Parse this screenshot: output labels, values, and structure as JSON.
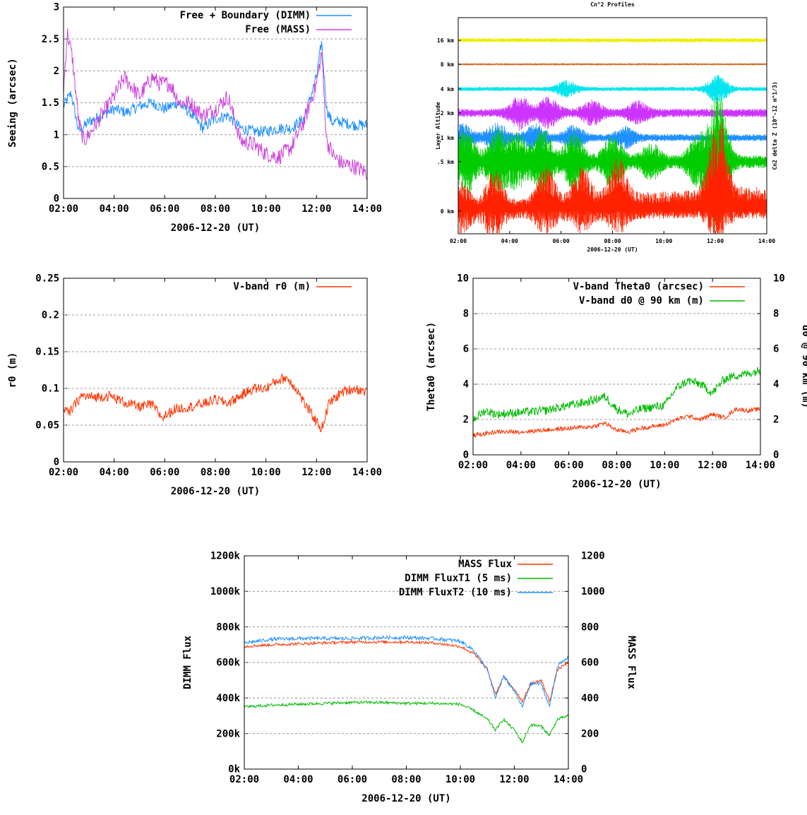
{
  "chart_data": [
    {
      "id": "seeing",
      "type": "line",
      "ylabel": "Seeing (arcsec)",
      "xlabel": "2006-12-20 (UT)",
      "x_ticks": [
        "02:00",
        "04:00",
        "06:00",
        "08:00",
        "10:00",
        "12:00",
        "14:00"
      ],
      "x_range_hours": [
        2,
        14
      ],
      "y_range": [
        0,
        3
      ],
      "y_ticks": [
        "0",
        "0.5",
        "1",
        "1.5",
        "2",
        "2.5",
        "3"
      ],
      "grid": "horizontal dashed",
      "legend_position": "top-right",
      "series": [
        {
          "name": "Free + Boundary (DIMM)",
          "color": "#1e90ff",
          "x": [
            2.0,
            2.3,
            2.6,
            3.0,
            3.5,
            4.0,
            4.5,
            5.0,
            5.5,
            6.0,
            6.5,
            7.0,
            7.5,
            8.0,
            8.5,
            9.0,
            9.5,
            10.0,
            10.5,
            11.0,
            11.5,
            12.0,
            12.2,
            12.4,
            12.6,
            13.0,
            13.5,
            14.0
          ],
          "values": [
            1.45,
            1.65,
            1.05,
            1.2,
            1.3,
            1.4,
            1.35,
            1.45,
            1.5,
            1.4,
            1.5,
            1.35,
            1.1,
            1.25,
            1.3,
            1.1,
            1.05,
            1.05,
            1.1,
            1.1,
            1.25,
            1.9,
            2.45,
            1.4,
            1.2,
            1.2,
            1.15,
            1.15
          ],
          "noise": 0.09
        },
        {
          "name": "Free (MASS)",
          "color": "#cc44dd",
          "x": [
            2.0,
            2.15,
            2.35,
            2.6,
            2.8,
            3.0,
            3.5,
            4.0,
            4.4,
            4.8,
            5.0,
            5.5,
            5.8,
            6.2,
            6.6,
            7.0,
            7.5,
            8.0,
            8.5,
            9.0,
            9.5,
            10.0,
            10.5,
            11.0,
            11.5,
            12.0,
            12.2,
            12.4,
            12.7,
            13.0,
            13.5,
            14.0
          ],
          "values": [
            1.7,
            2.6,
            2.2,
            1.2,
            0.9,
            1.0,
            1.3,
            1.6,
            1.9,
            1.7,
            1.6,
            1.9,
            1.8,
            1.8,
            1.5,
            1.5,
            1.3,
            1.4,
            1.6,
            0.9,
            0.85,
            0.7,
            0.65,
            0.8,
            1.2,
            1.8,
            2.3,
            0.9,
            0.65,
            0.55,
            0.5,
            0.4
          ],
          "noise": 0.13
        }
      ]
    },
    {
      "id": "cn2",
      "type": "line",
      "title": "Cn^2 Profiles",
      "ylabel": "Layer Altitude",
      "y2label": "Cn2 delta Z (10^-12 m^1/3)",
      "xlabel": "2006-12-20 (UT)",
      "x_ticks": [
        "02:00",
        "04:00",
        "06:00",
        "08:00",
        "10:00",
        "12:00",
        "14:00"
      ],
      "x_range_hours": [
        2,
        14
      ],
      "layers": [
        {
          "name": "16 km",
          "color": "#eeee00",
          "amp": 3,
          "bursts": []
        },
        {
          "name": "8 km",
          "color": "#d2691e",
          "amp": 1.5,
          "bursts": []
        },
        {
          "name": "4 km",
          "color": "#00e5ee",
          "amp": 3,
          "bursts": [
            [
              6.2,
              10
            ],
            [
              12.1,
              18
            ]
          ]
        },
        {
          "name": "2 km",
          "color": "#cc33ff",
          "amp": 6,
          "bursts": [
            [
              4.4,
              20
            ],
            [
              5.5,
              18
            ],
            [
              7.2,
              14
            ],
            [
              9.0,
              12
            ]
          ]
        },
        {
          "name": "1 km",
          "color": "#1e90ff",
          "amp": 5,
          "bursts": [
            [
              2.2,
              16
            ],
            [
              3.5,
              18
            ],
            [
              5.0,
              16
            ],
            [
              6.5,
              14
            ],
            [
              8.5,
              12
            ]
          ]
        },
        {
          "name": ".5 km",
          "color": "#00cc00",
          "amp": 9,
          "bursts": [
            [
              2.3,
              40
            ],
            [
              3.5,
              38
            ],
            [
              4.3,
              32
            ],
            [
              5.3,
              40
            ],
            [
              6.5,
              35
            ],
            [
              8.0,
              30
            ],
            [
              9.5,
              20
            ],
            [
              11.3,
              30
            ],
            [
              12.1,
              90
            ]
          ]
        },
        {
          "name": "0 km",
          "color": "#ff2200",
          "amp": 12,
          "bursts": [
            [
              2.1,
              30
            ],
            [
              3.4,
              36
            ],
            [
              5.4,
              30
            ],
            [
              6.8,
              26
            ],
            [
              8.2,
              28
            ],
            [
              12.1,
              40
            ]
          ]
        }
      ]
    },
    {
      "id": "r0",
      "type": "line",
      "ylabel": "r0 (m)",
      "xlabel": "2006-12-20 (UT)",
      "x_ticks": [
        "02:00",
        "04:00",
        "06:00",
        "08:00",
        "10:00",
        "12:00",
        "14:00"
      ],
      "x_range_hours": [
        2,
        14
      ],
      "y_range": [
        0,
        0.25
      ],
      "y_ticks": [
        "0",
        "0.05",
        "0.1",
        "0.15",
        "0.2",
        "0.25"
      ],
      "grid": "horizontal dashed",
      "legend_position": "top-right",
      "series": [
        {
          "name": "V-band r0 (m)",
          "color": "#ff3300",
          "x": [
            2.0,
            2.2,
            2.7,
            3.2,
            3.8,
            4.5,
            5.0,
            5.5,
            5.9,
            6.4,
            7.0,
            7.6,
            8.0,
            8.5,
            9.0,
            9.5,
            10.0,
            10.4,
            10.8,
            11.2,
            11.6,
            12.0,
            12.2,
            12.5,
            13.0,
            13.5,
            14.0
          ],
          "values": [
            0.075,
            0.065,
            0.09,
            0.088,
            0.09,
            0.08,
            0.075,
            0.078,
            0.06,
            0.072,
            0.075,
            0.08,
            0.085,
            0.08,
            0.09,
            0.1,
            0.1,
            0.11,
            0.115,
            0.1,
            0.075,
            0.055,
            0.045,
            0.08,
            0.095,
            0.1,
            0.095
          ],
          "noise": 0.007
        }
      ]
    },
    {
      "id": "theta0",
      "type": "line",
      "ylabel": "Theta0 (arcsec)",
      "y2label": "d0 @ 90 km (m)",
      "xlabel": "2006-12-20 (UT)",
      "x_ticks": [
        "02:00",
        "04:00",
        "06:00",
        "08:00",
        "10:00",
        "12:00",
        "14:00"
      ],
      "x_range_hours": [
        2,
        14
      ],
      "y_range": [
        0,
        10
      ],
      "y_ticks": [
        "0",
        "2",
        "4",
        "6",
        "8",
        "10"
      ],
      "y2_range": [
        0,
        10
      ],
      "y2_ticks": [
        "0",
        "2",
        "4",
        "6",
        "8",
        "10"
      ],
      "grid": "horizontal dashed",
      "legend_position": "top-right",
      "series": [
        {
          "name": "V-band Theta0 (arcsec)",
          "color": "#ff3300",
          "x": [
            2.0,
            3.0,
            4.0,
            5.0,
            6.0,
            7.0,
            7.5,
            8.0,
            8.5,
            9.0,
            10.0,
            10.5,
            11.0,
            11.5,
            12.0,
            12.5,
            13.0,
            13.5,
            14.0
          ],
          "values": [
            1.1,
            1.3,
            1.3,
            1.4,
            1.5,
            1.6,
            1.8,
            1.4,
            1.3,
            1.5,
            1.7,
            2.0,
            2.2,
            2.0,
            2.3,
            2.1,
            2.6,
            2.5,
            2.6
          ],
          "noise": 0.12
        },
        {
          "name": "V-band d0 @ 90 km (m)",
          "color": "#00bb00",
          "x": [
            2.0,
            2.5,
            3.0,
            4.0,
            5.0,
            6.0,
            6.8,
            7.5,
            8.0,
            8.5,
            9.0,
            10.0,
            10.5,
            11.0,
            11.5,
            12.0,
            12.5,
            13.0,
            13.5,
            14.0
          ],
          "values": [
            2.0,
            2.5,
            2.3,
            2.4,
            2.5,
            2.8,
            3.0,
            3.3,
            2.6,
            2.3,
            2.6,
            2.8,
            3.8,
            4.2,
            4.0,
            3.5,
            4.3,
            4.5,
            4.6,
            4.8
          ],
          "noise": 0.25
        }
      ]
    },
    {
      "id": "flux",
      "type": "line",
      "ylabel": "DIMM Flux",
      "y2label": "MASS Flux",
      "xlabel": "2006-12-20 (UT)",
      "x_ticks": [
        "02:00",
        "04:00",
        "06:00",
        "08:00",
        "10:00",
        "12:00",
        "14:00"
      ],
      "x_range_hours": [
        2,
        14
      ],
      "y_range": [
        0,
        1200
      ],
      "y_ticks": [
        "0k",
        "200k",
        "400k",
        "600k",
        "800k",
        "1000k",
        "1200k"
      ],
      "y2_range": [
        0,
        1200
      ],
      "y2_ticks": [
        "0",
        "200",
        "400",
        "600",
        "800",
        "1000",
        "1200"
      ],
      "grid": "horizontal dashed",
      "legend_position": "top-right",
      "series": [
        {
          "name": "MASS Flux",
          "color": "#ff3300",
          "x": [
            2.0,
            3.0,
            4.0,
            5.0,
            6.0,
            7.0,
            8.0,
            9.0,
            10.0,
            10.5,
            11.0,
            11.3,
            11.6,
            12.0,
            12.3,
            12.6,
            13.0,
            13.3,
            13.6,
            14.0
          ],
          "values": [
            690,
            700,
            705,
            710,
            715,
            715,
            715,
            710,
            690,
            650,
            560,
            420,
            520,
            450,
            380,
            480,
            500,
            380,
            560,
            600
          ],
          "noise": 8
        },
        {
          "name": "DIMM FluxT1 (5 ms)",
          "color": "#00bb00",
          "x": [
            2.0,
            3.0,
            4.0,
            5.0,
            6.0,
            7.0,
            8.0,
            9.0,
            10.0,
            10.5,
            11.0,
            11.3,
            11.6,
            12.0,
            12.3,
            12.6,
            13.0,
            13.3,
            13.6,
            14.0
          ],
          "values": [
            350,
            360,
            365,
            370,
            375,
            375,
            370,
            370,
            365,
            330,
            280,
            220,
            280,
            220,
            150,
            250,
            240,
            190,
            280,
            300
          ],
          "noise": 8
        },
        {
          "name": "DIMM FluxT2 (10 ms)",
          "color": "#1e90ff",
          "x": [
            2.0,
            3.0,
            4.0,
            5.0,
            6.0,
            7.0,
            8.0,
            9.0,
            10.0,
            10.5,
            11.0,
            11.3,
            11.6,
            12.0,
            12.3,
            12.6,
            13.0,
            13.3,
            13.6,
            14.0
          ],
          "values": [
            710,
            730,
            735,
            735,
            735,
            740,
            740,
            735,
            720,
            670,
            560,
            400,
            520,
            440,
            350,
            480,
            480,
            350,
            580,
            630
          ],
          "noise": 10
        }
      ]
    }
  ]
}
